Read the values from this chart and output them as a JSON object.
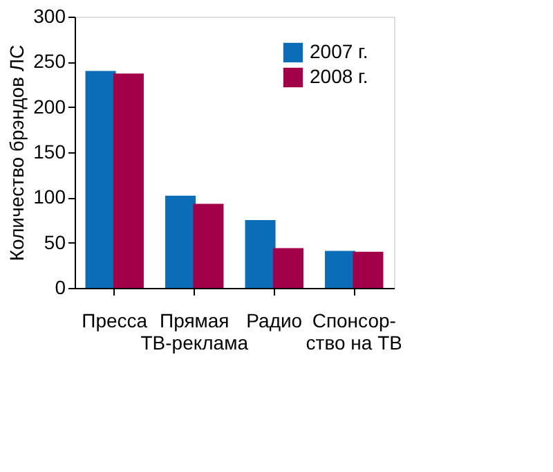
{
  "chart_data": {
    "type": "bar",
    "ylabel": "Количество брэндов ЛС",
    "categories": [
      "Пресса",
      "Прямая\nТВ-реклама",
      "Радио",
      "Спонсор-\nство на ТВ"
    ],
    "series": [
      {
        "name": "2007 г.",
        "color": "#0b6cb8",
        "values": [
          240,
          102,
          75,
          41
        ]
      },
      {
        "name": "2008 г.",
        "color": "#a3004a",
        "values": [
          237,
          93,
          44,
          40
        ]
      }
    ],
    "ylim": [
      0,
      300
    ],
    "yticks": [
      0,
      50,
      100,
      150,
      200,
      250,
      300
    ],
    "grid": false,
    "legend": "top right"
  }
}
